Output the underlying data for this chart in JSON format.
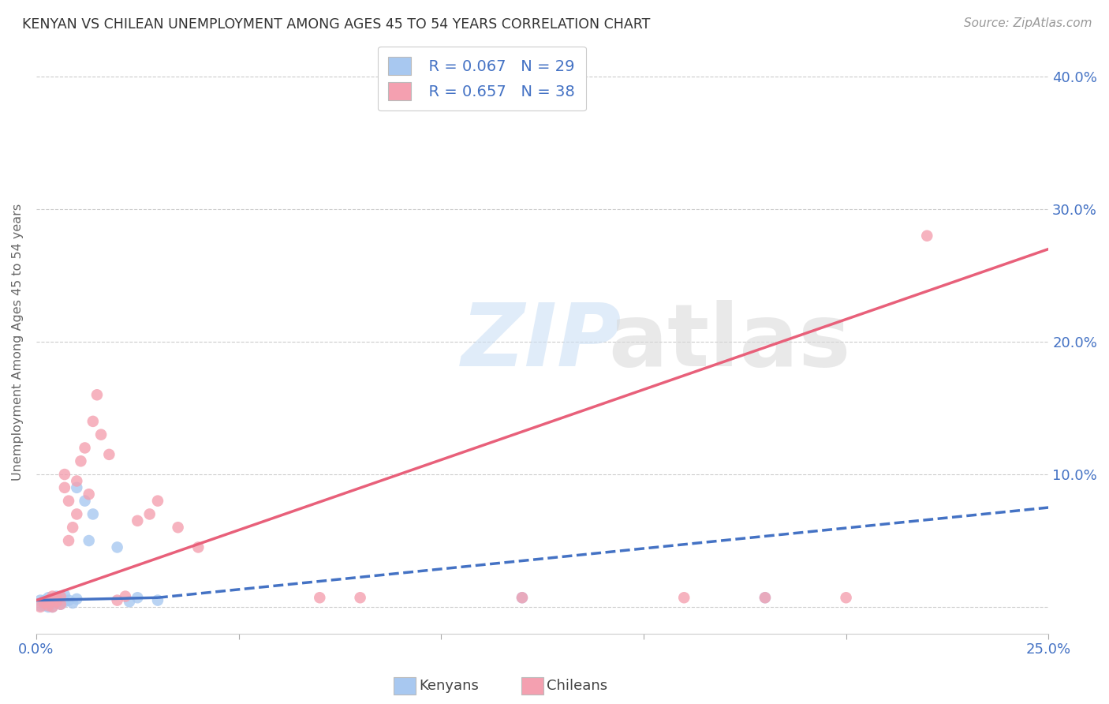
{
  "title": "KENYAN VS CHILEAN UNEMPLOYMENT AMONG AGES 45 TO 54 YEARS CORRELATION CHART",
  "source": "Source: ZipAtlas.com",
  "ylabel": "Unemployment Among Ages 45 to 54 years",
  "xlim": [
    0.0,
    0.25
  ],
  "ylim": [
    -0.02,
    0.42
  ],
  "x_ticks": [
    0.0,
    0.05,
    0.1,
    0.15,
    0.2,
    0.25
  ],
  "x_tick_labels": [
    "0.0%",
    "",
    "",
    "",
    "",
    "25.0%"
  ],
  "y_ticks": [
    0.0,
    0.1,
    0.2,
    0.3,
    0.4
  ],
  "y_tick_labels": [
    "",
    "10.0%",
    "20.0%",
    "30.0%",
    "40.0%"
  ],
  "legend_r_kenya": "R = 0.067",
  "legend_n_kenya": "N = 29",
  "legend_r_chile": "R = 0.657",
  "legend_n_chile": "N = 38",
  "kenya_color": "#a8c8f0",
  "chile_color": "#f4a0b0",
  "kenya_line_color": "#4472c4",
  "chile_line_color": "#e8607a",
  "kenya_scatter_x": [
    0.001,
    0.001,
    0.002,
    0.002,
    0.002,
    0.003,
    0.003,
    0.003,
    0.004,
    0.004,
    0.005,
    0.005,
    0.006,
    0.006,
    0.007,
    0.007,
    0.008,
    0.009,
    0.01,
    0.01,
    0.012,
    0.013,
    0.014,
    0.02,
    0.023,
    0.025,
    0.03,
    0.12,
    0.18
  ],
  "kenya_scatter_y": [
    0.001,
    0.005,
    0.001,
    0.003,
    0.005,
    0.0,
    0.004,
    0.007,
    0.0,
    0.005,
    0.003,
    0.008,
    0.002,
    0.007,
    0.004,
    0.009,
    0.005,
    0.003,
    0.006,
    0.09,
    0.08,
    0.05,
    0.07,
    0.045,
    0.004,
    0.007,
    0.005,
    0.007,
    0.007
  ],
  "chile_scatter_x": [
    0.001,
    0.002,
    0.003,
    0.003,
    0.004,
    0.004,
    0.005,
    0.005,
    0.006,
    0.006,
    0.007,
    0.007,
    0.008,
    0.008,
    0.009,
    0.01,
    0.01,
    0.011,
    0.012,
    0.013,
    0.014,
    0.015,
    0.016,
    0.018,
    0.02,
    0.022,
    0.025,
    0.028,
    0.03,
    0.035,
    0.04,
    0.07,
    0.08,
    0.12,
    0.16,
    0.18,
    0.2,
    0.22
  ],
  "chile_scatter_y": [
    0.0,
    0.003,
    0.001,
    0.005,
    0.0,
    0.008,
    0.004,
    0.007,
    0.002,
    0.008,
    0.09,
    0.1,
    0.05,
    0.08,
    0.06,
    0.095,
    0.07,
    0.11,
    0.12,
    0.085,
    0.14,
    0.16,
    0.13,
    0.115,
    0.005,
    0.008,
    0.065,
    0.07,
    0.08,
    0.06,
    0.045,
    0.007,
    0.007,
    0.007,
    0.007,
    0.007,
    0.007,
    0.28
  ],
  "background_color": "#ffffff",
  "grid_color": "#cccccc",
  "kenya_line_x": [
    0.0,
    0.095,
    0.25
  ],
  "kenya_line_y_start": 0.005,
  "kenya_line_y_mid": 0.008,
  "kenya_line_y_end": 0.075,
  "chile_line_x": [
    0.0,
    0.25
  ],
  "chile_line_y": [
    0.005,
    0.27
  ]
}
